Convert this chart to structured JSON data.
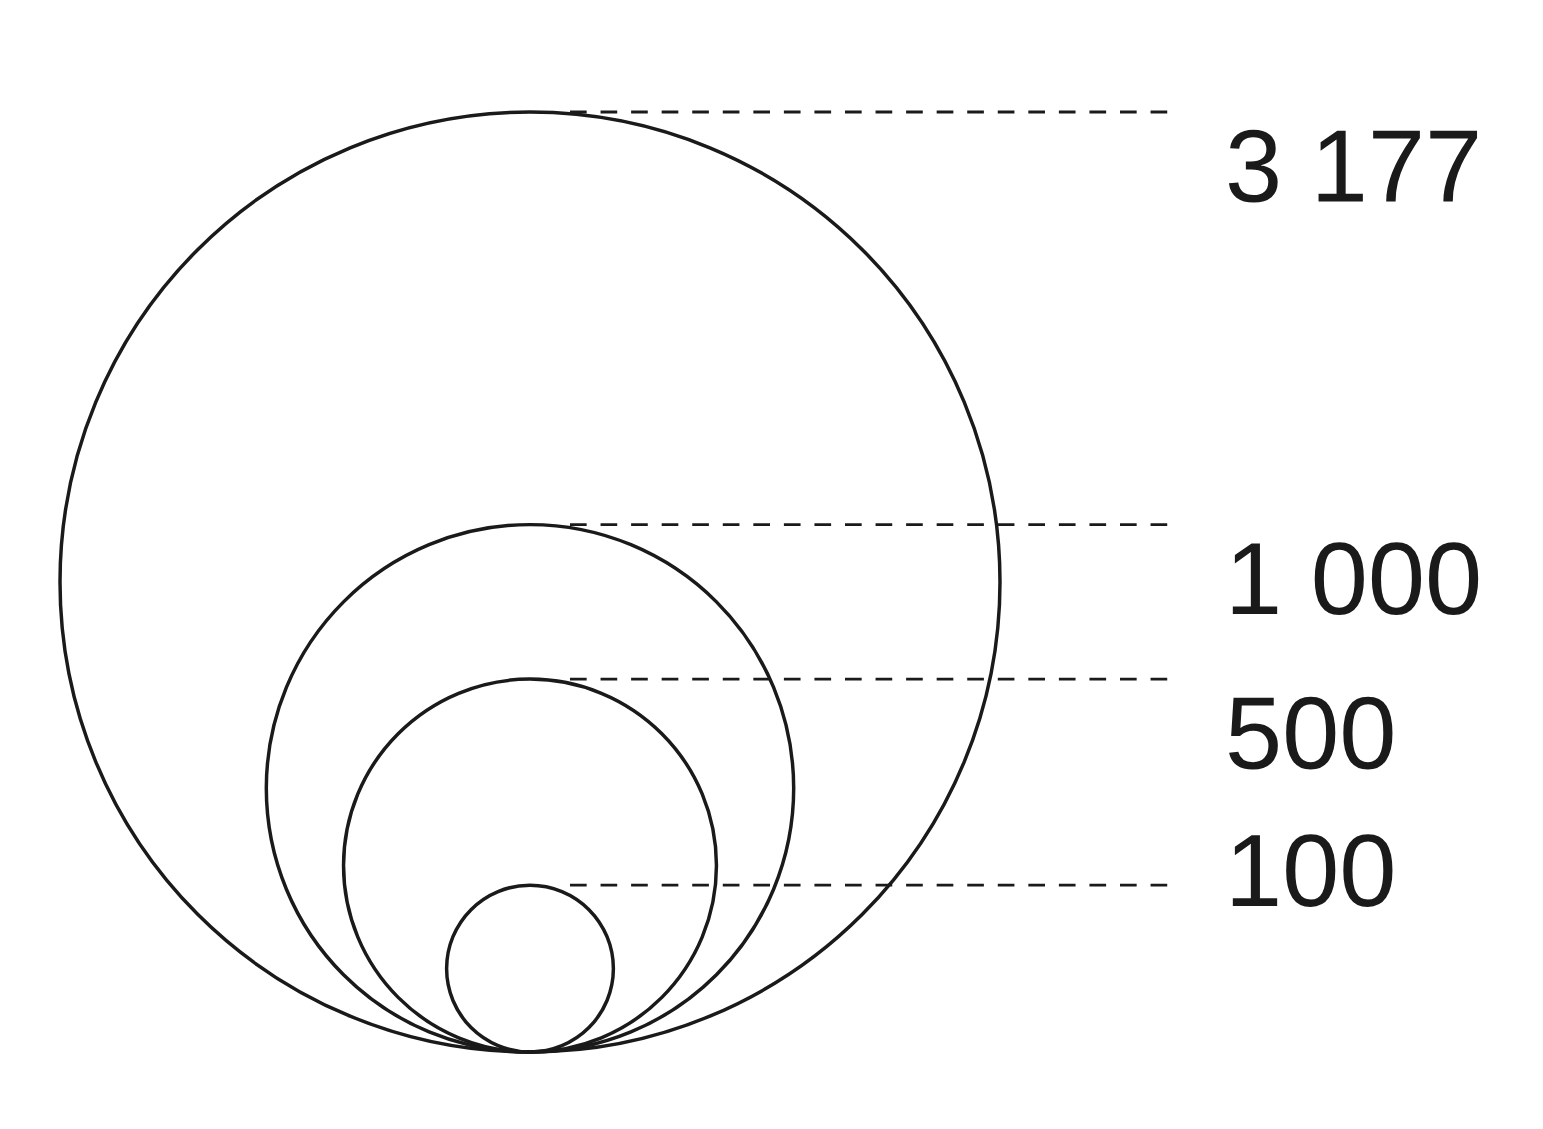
{
  "chart_data": {
    "type": "other",
    "values": [
      3177,
      1000,
      500,
      100
    ],
    "value_labels": [
      "3 177",
      "1 000",
      "500",
      "100"
    ],
    "color": "#1a1a1a"
  }
}
